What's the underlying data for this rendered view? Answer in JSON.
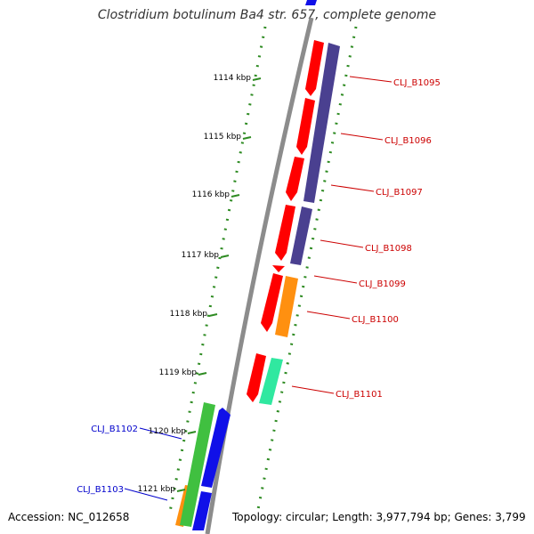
{
  "title": "Clostridium botulinum Ba4 str. 657, complete genome",
  "footer": {
    "accession": "Accession: NC_012658",
    "summary": "Topology: circular; Length: 3,977,794 bp; Genes: 3,799"
  },
  "colors": {
    "backbone": "#8c8c8c",
    "tick": "#2e8b22",
    "label_forward": "#cc0000",
    "label_reverse": "#0000cc",
    "red": "#ff0000",
    "purple": "#4a4090",
    "orange": "#ff9010",
    "teal": "#30e8a0",
    "green": "#40c040",
    "blue": "#1010e8"
  },
  "ticks": [
    "1114 kbp",
    "1115 kbp",
    "1116 kbp",
    "1117 kbp",
    "1118 kbp",
    "1119 kbp",
    "1120 kbp",
    "1121 kbp"
  ],
  "gene_labels": [
    "CLJ_B1095",
    "CLJ_B1096",
    "CLJ_B1097",
    "CLJ_B1098",
    "CLJ_B1099",
    "CLJ_B1100",
    "CLJ_B1101",
    "CLJ_B1102",
    "CLJ_B1103"
  ]
}
